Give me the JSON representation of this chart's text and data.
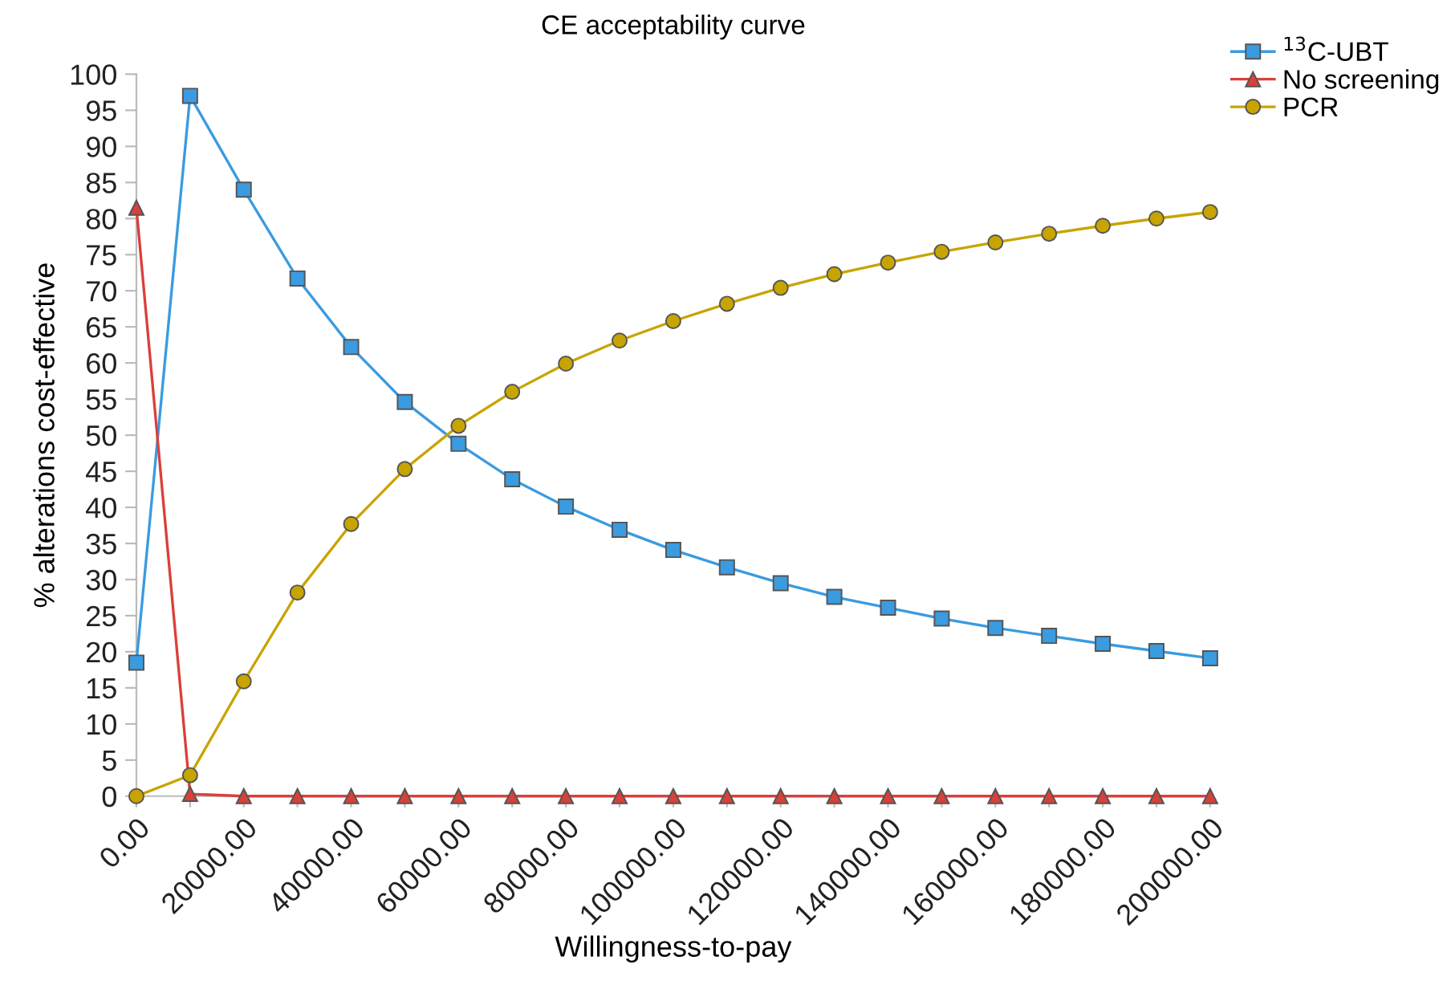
{
  "chart_data": {
    "type": "line",
    "title": "CE acceptability curve",
    "xlabel": "Willingness-to-pay",
    "ylabel": "% alterations cost-effective",
    "x": [
      0,
      10000,
      20000,
      30000,
      40000,
      50000,
      60000,
      70000,
      80000,
      90000,
      100000,
      110000,
      120000,
      130000,
      140000,
      150000,
      160000,
      170000,
      180000,
      190000,
      200000
    ],
    "series": [
      {
        "name": "$^{13}$C-UBT",
        "color": "#3a9be0",
        "marker": "square",
        "values": [
          18.5,
          97,
          84,
          71.7,
          62.2,
          54.6,
          48.8,
          43.9,
          40.1,
          36.9,
          34.1,
          31.7,
          29.5,
          27.6,
          26.1,
          24.6,
          23.3,
          22.2,
          21.1,
          20.1,
          19.1
        ]
      },
      {
        "name": "No screening",
        "color": "#d9403a",
        "marker": "triangle",
        "values": [
          81.5,
          0.3,
          0,
          0,
          0,
          0,
          0,
          0,
          0,
          0,
          0,
          0,
          0,
          0,
          0,
          0,
          0,
          0,
          0,
          0,
          0
        ]
      },
      {
        "name": "PCR",
        "color": "#c8a400",
        "marker": "circle",
        "values": [
          0,
          2.9,
          15.9,
          28.2,
          37.7,
          45.3,
          51.3,
          56.0,
          59.9,
          63.1,
          65.8,
          68.2,
          70.4,
          72.3,
          73.9,
          75.4,
          76.7,
          77.9,
          79.0,
          80.0,
          80.9
        ]
      }
    ],
    "xlim": [
      0,
      200000
    ],
    "xticks": [
      {
        "value": 0,
        "label": "0.00"
      },
      {
        "value": 10000,
        "label": null
      },
      {
        "value": 20000,
        "label": "20000.00"
      },
      {
        "value": 30000,
        "label": null
      },
      {
        "value": 40000,
        "label": "40000.00"
      },
      {
        "value": 50000,
        "label": null
      },
      {
        "value": 60000,
        "label": "60000.00"
      },
      {
        "value": 70000,
        "label": null
      },
      {
        "value": 80000,
        "label": "80000.00"
      },
      {
        "value": 90000,
        "label": null
      },
      {
        "value": 100000,
        "label": "100000.00"
      },
      {
        "value": 110000,
        "label": null
      },
      {
        "value": 120000,
        "label": "120000.00"
      },
      {
        "value": 130000,
        "label": null
      },
      {
        "value": 140000,
        "label": "140000.00"
      },
      {
        "value": 150000,
        "label": null
      },
      {
        "value": 160000,
        "label": "160000.00"
      },
      {
        "value": 170000,
        "label": null
      },
      {
        "value": 180000,
        "label": "180000.00"
      },
      {
        "value": 190000,
        "label": null
      },
      {
        "value": 200000,
        "label": "200000.00"
      }
    ],
    "ylim": [
      0,
      100
    ],
    "yticks": [
      0,
      5,
      10,
      15,
      20,
      25,
      30,
      35,
      40,
      45,
      50,
      55,
      60,
      65,
      70,
      75,
      80,
      85,
      90,
      95,
      100
    ],
    "grid": false,
    "legend": "top right",
    "line_style": "solid"
  }
}
